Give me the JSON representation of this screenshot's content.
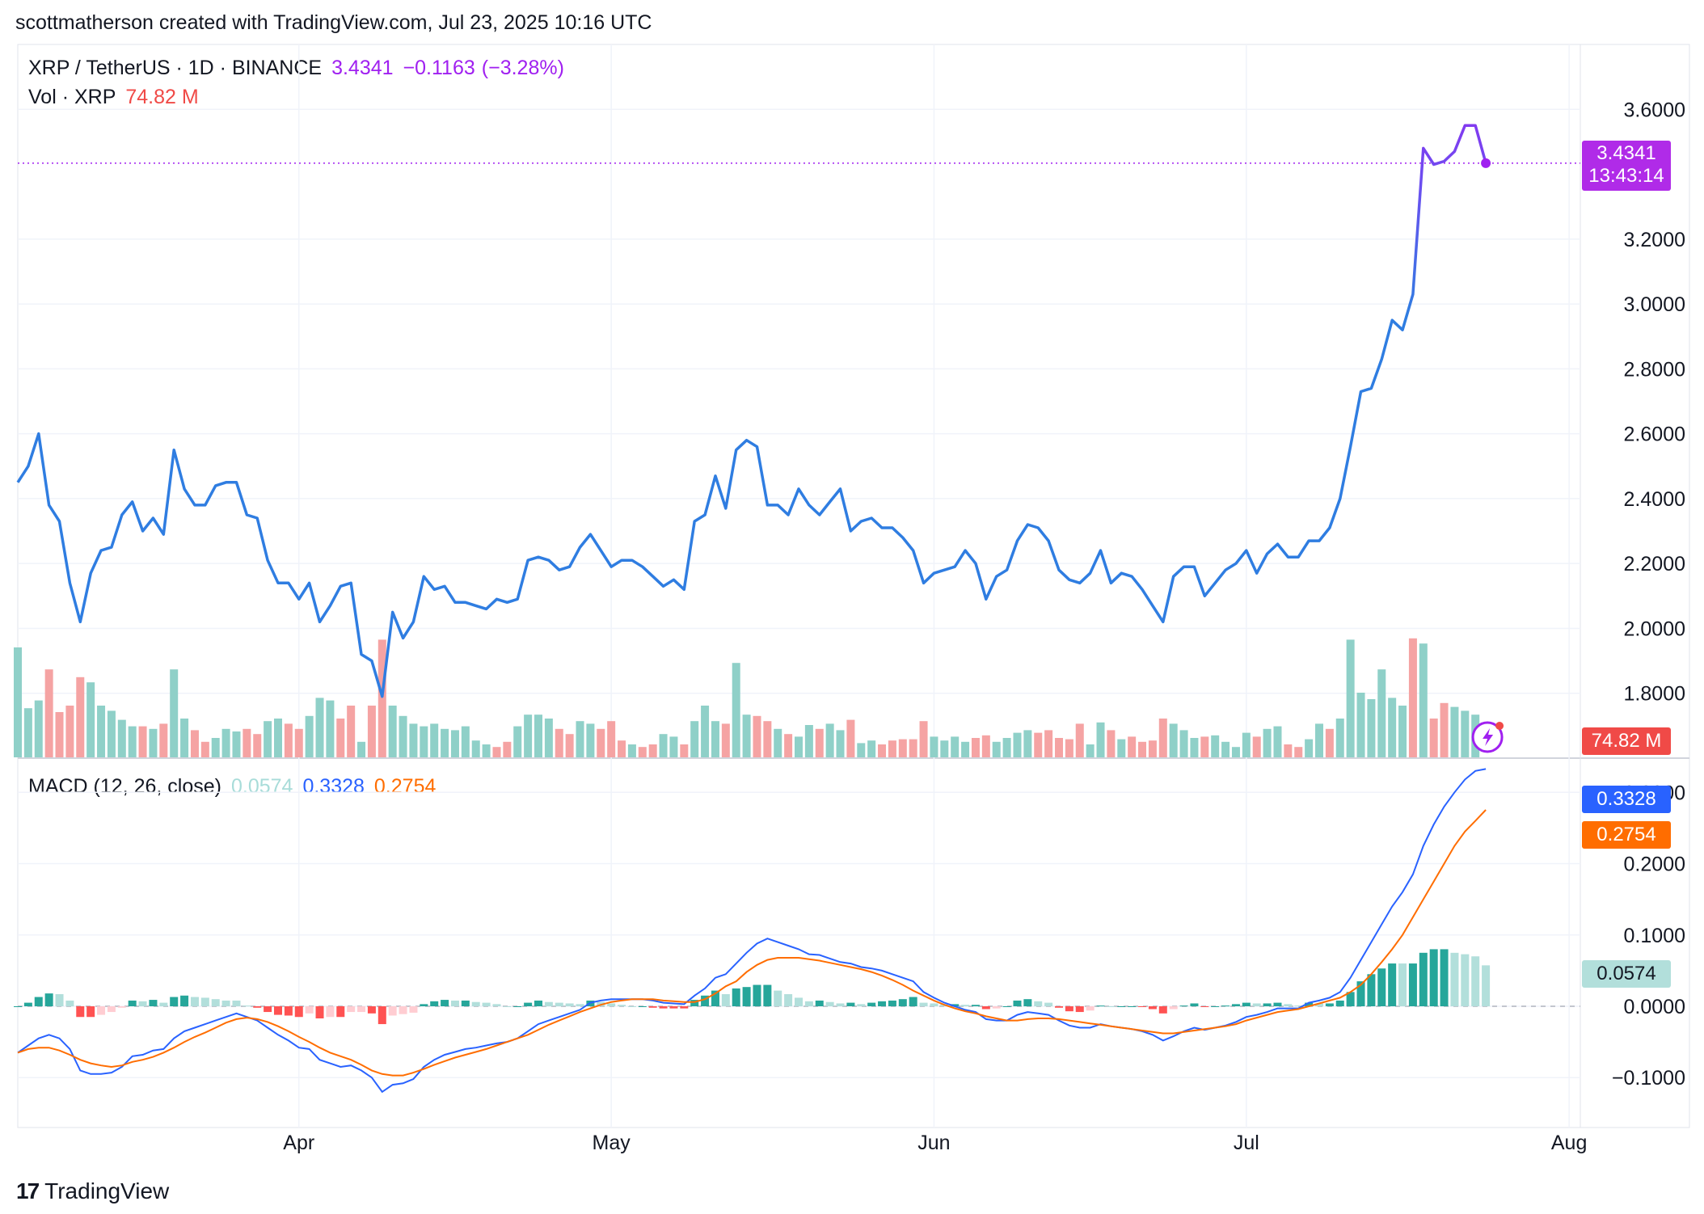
{
  "header": {
    "attribution": "scottmatherson created with TradingView.com, Jul 23, 2025 10:16 UTC"
  },
  "legend": {
    "symbol": "XRP / TetherUS · 1D · BINANCE",
    "price": "3.4341",
    "change": "−0.1163",
    "change_pct": "(−3.28%)",
    "vol_label": "Vol · XRP",
    "vol_value": "74.82 M",
    "macd_label": "MACD (12, 26, close)",
    "macd_hist": "0.0574",
    "macd_line": "0.3328",
    "macd_signal": "0.2754"
  },
  "badges": {
    "price": "3.4341",
    "countdown": "13:43:14",
    "volume": "74.82 M",
    "macd_line": "0.3328",
    "macd_signal": "0.2754",
    "macd_hist": "0.0574"
  },
  "brand": {
    "logo_text": "TradingView",
    "logo_mark": "17"
  },
  "colors": {
    "price_blue": "#2f7de1",
    "price_purple": "#a020f0",
    "vol_up": "#8fd0c8",
    "vol_down": "#f5a3a3",
    "macd_line": "#2962ff",
    "signal_line": "#ff6d00",
    "hist_up_strong": "#26a69a",
    "hist_up_weak": "#b2dfdb",
    "hist_down_strong": "#ff5252",
    "hist_down_weak": "#ffcdd2"
  },
  "chart_data": {
    "type": "line",
    "x_ticks": [
      "Apr",
      "May",
      "Jun",
      "Jul",
      "Aug"
    ],
    "x_tick_days": [
      27,
      57,
      88,
      118,
      149
    ],
    "price_axis_ticks": [
      "3.6000",
      "3.2000",
      "3.0000",
      "2.8000",
      "2.6000",
      "2.4000",
      "2.2000",
      "2.0000",
      "1.8000"
    ],
    "price_ylim": [
      1.6,
      3.8
    ],
    "macd_axis_ticks": [
      "0.3000",
      "0.2000",
      "0.1000",
      "0.0000",
      "−0.1000"
    ],
    "macd_ylim": [
      -0.17,
      0.34
    ],
    "close": [
      2.45,
      2.5,
      2.6,
      2.38,
      2.33,
      2.14,
      2.02,
      2.17,
      2.24,
      2.25,
      2.35,
      2.39,
      2.3,
      2.34,
      2.29,
      2.55,
      2.43,
      2.38,
      2.38,
      2.44,
      2.45,
      2.45,
      2.35,
      2.34,
      2.21,
      2.14,
      2.14,
      2.09,
      2.14,
      2.02,
      2.07,
      2.13,
      2.14,
      1.92,
      1.9,
      1.79,
      2.05,
      1.97,
      2.02,
      2.16,
      2.12,
      2.13,
      2.08,
      2.08,
      2.07,
      2.06,
      2.09,
      2.08,
      2.09,
      2.21,
      2.22,
      2.21,
      2.18,
      2.19,
      2.25,
      2.29,
      2.24,
      2.19,
      2.21,
      2.21,
      2.19,
      2.16,
      2.13,
      2.15,
      2.12,
      2.33,
      2.35,
      2.47,
      2.37,
      2.55,
      2.58,
      2.56,
      2.38,
      2.38,
      2.35,
      2.43,
      2.38,
      2.35,
      2.39,
      2.43,
      2.3,
      2.33,
      2.34,
      2.31,
      2.31,
      2.28,
      2.24,
      2.14,
      2.17,
      2.18,
      2.19,
      2.24,
      2.2,
      2.09,
      2.16,
      2.18,
      2.27,
      2.32,
      2.31,
      2.27,
      2.18,
      2.15,
      2.14,
      2.17,
      2.24,
      2.14,
      2.17,
      2.16,
      2.12,
      2.07,
      2.02,
      2.16,
      2.19,
      2.19,
      2.1,
      2.14,
      2.18,
      2.2,
      2.24,
      2.17,
      2.23,
      2.26,
      2.22,
      2.22,
      2.27,
      2.27,
      2.31,
      2.4,
      2.56,
      2.73,
      2.74,
      2.83,
      2.95,
      2.92,
      3.03,
      3.48,
      3.43,
      3.44,
      3.47,
      3.55,
      3.55,
      3.4341
    ],
    "volume_rel": [
      0.85,
      0.38,
      0.44,
      0.68,
      0.35,
      0.4,
      0.62,
      0.58,
      0.4,
      0.36,
      0.29,
      0.24,
      0.24,
      0.22,
      0.26,
      0.68,
      0.3,
      0.21,
      0.12,
      0.15,
      0.22,
      0.2,
      0.22,
      0.18,
      0.28,
      0.3,
      0.26,
      0.22,
      0.32,
      0.46,
      0.44,
      0.3,
      0.4,
      0.12,
      0.4,
      0.91,
      0.4,
      0.32,
      0.26,
      0.24,
      0.26,
      0.22,
      0.21,
      0.24,
      0.13,
      0.1,
      0.08,
      0.12,
      0.24,
      0.33,
      0.33,
      0.3,
      0.22,
      0.18,
      0.28,
      0.26,
      0.22,
      0.28,
      0.13,
      0.1,
      0.08,
      0.1,
      0.18,
      0.16,
      0.1,
      0.28,
      0.4,
      0.28,
      0.26,
      0.73,
      0.33,
      0.32,
      0.28,
      0.22,
      0.18,
      0.16,
      0.25,
      0.22,
      0.26,
      0.21,
      0.29,
      0.11,
      0.13,
      0.1,
      0.13,
      0.14,
      0.14,
      0.28,
      0.16,
      0.13,
      0.16,
      0.12,
      0.15,
      0.17,
      0.12,
      0.15,
      0.19,
      0.21,
      0.19,
      0.21,
      0.15,
      0.14,
      0.26,
      0.1,
      0.27,
      0.21,
      0.14,
      0.16,
      0.12,
      0.13,
      0.3,
      0.26,
      0.21,
      0.15,
      0.16,
      0.17,
      0.12,
      0.08,
      0.19,
      0.16,
      0.22,
      0.24,
      0.1,
      0.08,
      0.14,
      0.26,
      0.22,
      0.3,
      0.91,
      0.5,
      0.45,
      0.68,
      0.46,
      0.4,
      0.92,
      0.88,
      0.3,
      0.42,
      0.39,
      0.36,
      0.33
    ],
    "volume_up": [
      1,
      1,
      1,
      0,
      0,
      0,
      0,
      1,
      1,
      1,
      1,
      1,
      0,
      1,
      0,
      1,
      1,
      0,
      0,
      1,
      1,
      1,
      0,
      0,
      1,
      1,
      0,
      0,
      1,
      1,
      1,
      0,
      0,
      1,
      0,
      0,
      1,
      1,
      1,
      1,
      1,
      1,
      1,
      1,
      1,
      1,
      0,
      0,
      1,
      1,
      1,
      1,
      0,
      0,
      1,
      1,
      0,
      0,
      0,
      1,
      0,
      0,
      1,
      1,
      0,
      1,
      1,
      1,
      0,
      1,
      1,
      0,
      0,
      1,
      0,
      1,
      1,
      0,
      1,
      1,
      0,
      1,
      1,
      0,
      0,
      0,
      0,
      0,
      1,
      1,
      1,
      1,
      0,
      0,
      1,
      1,
      1,
      1,
      0,
      0,
      0,
      0,
      0,
      1,
      1,
      0,
      1,
      0,
      0,
      0,
      0,
      1,
      1,
      1,
      0,
      1,
      1,
      1,
      1,
      0,
      1,
      1,
      0,
      0,
      1,
      1,
      0,
      1,
      1,
      1,
      1,
      1,
      1,
      1,
      0,
      1,
      0,
      0,
      1,
      1,
      1,
      1
    ],
    "macd": [
      -0.065,
      -0.055,
      -0.045,
      -0.04,
      -0.045,
      -0.06,
      -0.09,
      -0.095,
      -0.095,
      -0.093,
      -0.085,
      -0.07,
      -0.068,
      -0.062,
      -0.06,
      -0.045,
      -0.035,
      -0.03,
      -0.025,
      -0.02,
      -0.015,
      -0.01,
      -0.015,
      -0.02,
      -0.03,
      -0.04,
      -0.048,
      -0.058,
      -0.06,
      -0.075,
      -0.08,
      -0.085,
      -0.083,
      -0.09,
      -0.1,
      -0.12,
      -0.11,
      -0.108,
      -0.102,
      -0.085,
      -0.075,
      -0.068,
      -0.064,
      -0.06,
      -0.058,
      -0.055,
      -0.052,
      -0.05,
      -0.045,
      -0.035,
      -0.025,
      -0.02,
      -0.015,
      -0.01,
      -0.005,
      0.005,
      0.008,
      0.01,
      0.01,
      0.01,
      0.01,
      0.008,
      0.005,
      0.004,
      0.003,
      0.015,
      0.025,
      0.04,
      0.045,
      0.06,
      0.075,
      0.088,
      0.095,
      0.09,
      0.085,
      0.08,
      0.073,
      0.072,
      0.067,
      0.062,
      0.06,
      0.055,
      0.053,
      0.05,
      0.045,
      0.04,
      0.035,
      0.02,
      0.012,
      0.005,
      0.0,
      -0.005,
      -0.008,
      -0.018,
      -0.02,
      -0.02,
      -0.012,
      -0.008,
      -0.01,
      -0.012,
      -0.02,
      -0.027,
      -0.03,
      -0.03,
      -0.025,
      -0.028,
      -0.03,
      -0.032,
      -0.035,
      -0.04,
      -0.048,
      -0.042,
      -0.035,
      -0.03,
      -0.033,
      -0.03,
      -0.027,
      -0.022,
      -0.015,
      -0.012,
      -0.008,
      -0.003,
      -0.003,
      -0.003,
      0.005,
      0.008,
      0.012,
      0.02,
      0.04,
      0.065,
      0.09,
      0.115,
      0.14,
      0.16,
      0.185,
      0.225,
      0.255,
      0.28,
      0.3,
      0.318,
      0.33,
      0.3328
    ],
    "signal": [
      -0.065,
      -0.06,
      -0.058,
      -0.058,
      -0.062,
      -0.068,
      -0.075,
      -0.08,
      -0.083,
      -0.085,
      -0.083,
      -0.078,
      -0.075,
      -0.071,
      -0.065,
      -0.058,
      -0.05,
      -0.043,
      -0.037,
      -0.03,
      -0.023,
      -0.018,
      -0.016,
      -0.018,
      -0.022,
      -0.028,
      -0.035,
      -0.043,
      -0.05,
      -0.058,
      -0.065,
      -0.07,
      -0.075,
      -0.082,
      -0.09,
      -0.095,
      -0.097,
      -0.097,
      -0.093,
      -0.088,
      -0.082,
      -0.077,
      -0.072,
      -0.068,
      -0.064,
      -0.06,
      -0.055,
      -0.05,
      -0.045,
      -0.04,
      -0.033,
      -0.026,
      -0.02,
      -0.014,
      -0.008,
      -0.003,
      0.002,
      0.006,
      0.008,
      0.01,
      0.01,
      0.01,
      0.008,
      0.007,
      0.006,
      0.006,
      0.01,
      0.018,
      0.028,
      0.035,
      0.048,
      0.058,
      0.065,
      0.068,
      0.068,
      0.068,
      0.066,
      0.064,
      0.061,
      0.058,
      0.055,
      0.052,
      0.048,
      0.043,
      0.037,
      0.03,
      0.022,
      0.015,
      0.008,
      0.002,
      -0.003,
      -0.007,
      -0.01,
      -0.014,
      -0.017,
      -0.02,
      -0.02,
      -0.018,
      -0.017,
      -0.017,
      -0.018,
      -0.02,
      -0.022,
      -0.024,
      -0.026,
      -0.028,
      -0.03,
      -0.032,
      -0.034,
      -0.036,
      -0.038,
      -0.038,
      -0.036,
      -0.034,
      -0.032,
      -0.03,
      -0.028,
      -0.025,
      -0.02,
      -0.016,
      -0.012,
      -0.008,
      -0.006,
      -0.004,
      0.0,
      0.004,
      0.008,
      0.012,
      0.02,
      0.03,
      0.045,
      0.062,
      0.08,
      0.1,
      0.125,
      0.15,
      0.175,
      0.2,
      0.225,
      0.245,
      0.26,
      0.2754
    ]
  }
}
